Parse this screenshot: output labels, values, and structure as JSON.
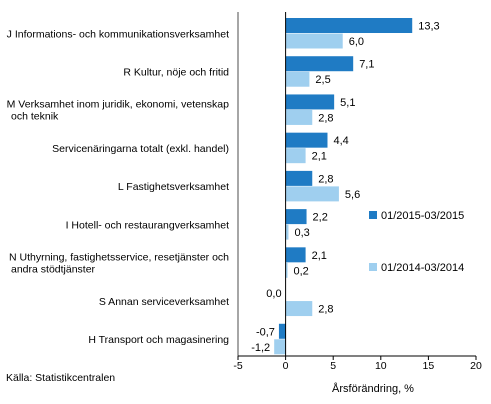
{
  "chart_data": {
    "type": "bar",
    "orientation": "horizontal",
    "categories": [
      [
        "J Informations- och kommunikationsverksamhet"
      ],
      [
        "R Kultur, nöje och fritid"
      ],
      [
        "M Verksamhet inom juridik, ekonomi, vetenskap",
        "och teknik"
      ],
      [
        "Servicenäringarna totalt (exkl. handel)"
      ],
      [
        "L Fastighetsverksamhet"
      ],
      [
        "I Hotell- och restaurangverksamhet"
      ],
      [
        "N Uthyrning, fastighetsservice, resetjänster och",
        "andra stödtjänster"
      ],
      [
        "S Annan serviceverksamhet"
      ],
      [
        "H Transport och magasinering"
      ]
    ],
    "series": [
      {
        "name": "01/2015-03/2015",
        "color": "#1f7bc4",
        "values": [
          13.3,
          7.1,
          5.1,
          4.4,
          2.8,
          2.2,
          2.1,
          0.0,
          -0.7
        ],
        "labels": [
          "13,3",
          "7,1",
          "5,1",
          "4,4",
          "2,8",
          "2,2",
          "2,1",
          "0,0",
          "-0,7"
        ]
      },
      {
        "name": "01/2014-03/2014",
        "color": "#9fcfef",
        "values": [
          6.0,
          2.5,
          2.8,
          2.1,
          5.6,
          0.3,
          0.2,
          2.8,
          -1.2
        ],
        "labels": [
          "6,0",
          "2,5",
          "2,8",
          "2,1",
          "5,6",
          "0,3",
          "0,2",
          "2,8",
          "-1,2"
        ]
      }
    ],
    "xlim": [
      -5,
      20
    ],
    "xticks": [
      -5,
      0,
      5,
      10,
      15,
      20
    ],
    "xlabel": "Årsförändring, %",
    "legend": "right",
    "grid": false
  },
  "source": "Källa:  Statistikcentralen"
}
